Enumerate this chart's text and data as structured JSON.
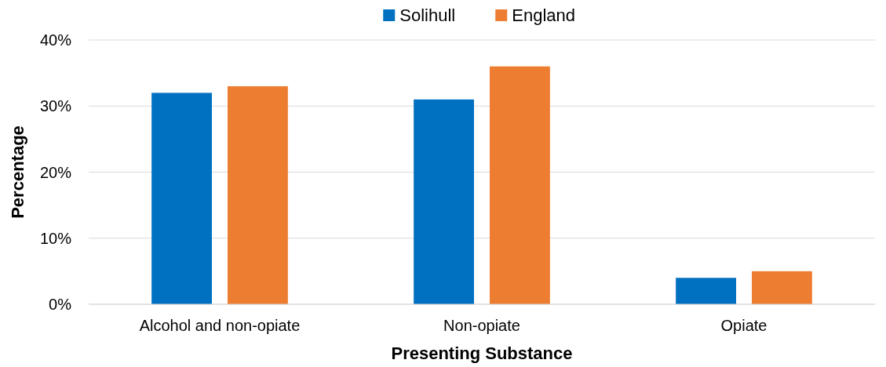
{
  "chart_data": {
    "type": "bar",
    "xlabel": "Presenting Substance",
    "ylabel": "Percentage",
    "categories": [
      "Alcohol and non-opiate",
      "Non-opiate",
      "Opiate"
    ],
    "series": [
      {
        "name": "Solihull",
        "color": "#0070c0",
        "values": [
          32,
          31,
          4
        ]
      },
      {
        "name": "England",
        "color": "#ed7d31",
        "values": [
          33,
          36,
          5
        ]
      }
    ],
    "ylim": [
      0,
      40
    ],
    "yticks": [
      {
        "value": 0,
        "label": "0%"
      },
      {
        "value": 10,
        "label": "10%"
      },
      {
        "value": 20,
        "label": "20%"
      },
      {
        "value": 30,
        "label": "30%"
      },
      {
        "value": 40,
        "label": "40%"
      }
    ],
    "grid": "y",
    "legend": "top"
  }
}
